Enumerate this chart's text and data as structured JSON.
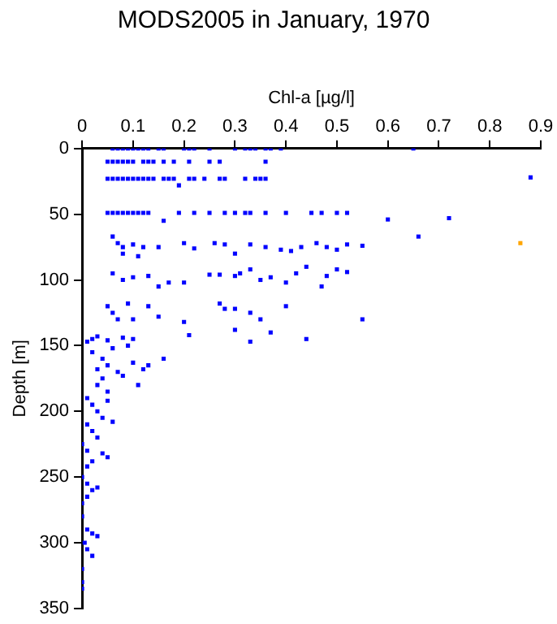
{
  "chart_data": {
    "type": "scatter",
    "title": "MODS2005 in January, 1970",
    "xlabel": "Chl-a [µg/l]",
    "ylabel": "Depth [m]",
    "xlim": [
      0,
      0.9
    ],
    "xticks": [
      0,
      0.1,
      0.2,
      0.3,
      0.4,
      0.5,
      0.6,
      0.7,
      0.8,
      0.9
    ],
    "ylim": [
      350,
      0
    ],
    "yticks": [
      0,
      50,
      100,
      150,
      200,
      250,
      300,
      350
    ],
    "grid": false,
    "legend": false,
    "marker": "square",
    "series": [
      {
        "color": "#0000ff",
        "x": [
          0.06,
          0.07,
          0.08,
          0.09,
          0.1,
          0.11,
          0.12,
          0.13,
          0.15,
          0.16,
          0.2,
          0.21,
          0.22,
          0.25,
          0.3,
          0.32,
          0.33,
          0.34,
          0.36,
          0.37,
          0.39,
          0.65,
          0.05,
          0.06,
          0.07,
          0.08,
          0.09,
          0.1,
          0.12,
          0.13,
          0.14,
          0.16,
          0.18,
          0.21,
          0.25,
          0.27,
          0.36,
          0.05,
          0.06,
          0.07,
          0.08,
          0.09,
          0.1,
          0.11,
          0.12,
          0.13,
          0.14,
          0.16,
          0.17,
          0.18,
          0.19,
          0.21,
          0.22,
          0.24,
          0.27,
          0.28,
          0.32,
          0.34,
          0.35,
          0.36,
          0.88,
          0.05,
          0.06,
          0.07,
          0.08,
          0.09,
          0.1,
          0.11,
          0.12,
          0.13,
          0.16,
          0.19,
          0.22,
          0.25,
          0.28,
          0.3,
          0.32,
          0.33,
          0.36,
          0.4,
          0.45,
          0.47,
          0.5,
          0.52,
          0.6,
          0.72,
          0.06,
          0.07,
          0.08,
          0.1,
          0.12,
          0.15,
          0.2,
          0.22,
          0.26,
          0.28,
          0.33,
          0.36,
          0.39,
          0.41,
          0.43,
          0.46,
          0.48,
          0.5,
          0.52,
          0.55,
          0.66,
          0.08,
          0.11,
          0.3,
          0.06,
          0.08,
          0.1,
          0.13,
          0.15,
          0.17,
          0.2,
          0.25,
          0.27,
          0.3,
          0.31,
          0.33,
          0.35,
          0.37,
          0.4,
          0.42,
          0.44,
          0.47,
          0.5,
          0.52,
          0.48,
          0.05,
          0.06,
          0.07,
          0.09,
          0.1,
          0.13,
          0.15,
          0.2,
          0.27,
          0.28,
          0.3,
          0.33,
          0.35,
          0.3,
          0.37,
          0.4,
          0.44,
          0.33,
          0.21,
          0.55,
          0.01,
          0.02,
          0.03,
          0.05,
          0.08,
          0.1,
          0.02,
          0.04,
          0.06,
          0.09,
          0.03,
          0.05,
          0.07,
          0.1,
          0.13,
          0.11,
          0.16,
          0.03,
          0.05,
          0.04,
          0.08,
          0.12,
          0.01,
          0.02,
          0.03,
          0.04,
          0.05,
          0.06,
          0.01,
          0.02,
          0.03,
          0.0,
          0.01,
          0.04,
          0.02,
          0.01,
          0.05,
          0.0,
          0.01,
          0.02,
          0.03,
          0.01,
          0.0,
          0.0,
          0.01,
          0.02,
          0.03,
          0.005,
          0.01,
          0.02,
          0.0,
          0.0,
          0.0
        ],
        "values": [
          0,
          0,
          0,
          0,
          0,
          0,
          0,
          0,
          0,
          0,
          0,
          0,
          0,
          0,
          0,
          0,
          0,
          0,
          0,
          0,
          0,
          0,
          10,
          10,
          10,
          10,
          10,
          10,
          10,
          10,
          10,
          10,
          10,
          10,
          10,
          10,
          10,
          23,
          23,
          23,
          23,
          23,
          23,
          23,
          23,
          23,
          23,
          23,
          23,
          23,
          28,
          23,
          23,
          23,
          23,
          23,
          23,
          23,
          23,
          23,
          22,
          49,
          49,
          49,
          49,
          49,
          49,
          49,
          49,
          49,
          55,
          49,
          49,
          49,
          49,
          49,
          49,
          49,
          49,
          49,
          49,
          49,
          49,
          49,
          54,
          53,
          67,
          72,
          75,
          73,
          75,
          75,
          72,
          76,
          72,
          73,
          73,
          75,
          77,
          78,
          75,
          72,
          75,
          77,
          73,
          74,
          67,
          80,
          82,
          80,
          95,
          100,
          98,
          97,
          105,
          102,
          102,
          96,
          96,
          97,
          95,
          92,
          100,
          98,
          102,
          95,
          90,
          105,
          92,
          94,
          97,
          120,
          125,
          130,
          118,
          130,
          120,
          128,
          132,
          118,
          122,
          122,
          125,
          130,
          138,
          140,
          120,
          145,
          147,
          142,
          130,
          147,
          145,
          143,
          146,
          144,
          145,
          155,
          160,
          152,
          150,
          168,
          165,
          170,
          163,
          165,
          180,
          160,
          180,
          185,
          175,
          173,
          168,
          190,
          195,
          200,
          205,
          192,
          208,
          210,
          215,
          220,
          225,
          230,
          232,
          238,
          242,
          235,
          250,
          255,
          260,
          258,
          265,
          270,
          280,
          290,
          293,
          295,
          300,
          305,
          310,
          320,
          330,
          335
        ]
      },
      {
        "color": "#ffa500",
        "x": [
          0.86
        ],
        "values": [
          72
        ]
      }
    ]
  }
}
